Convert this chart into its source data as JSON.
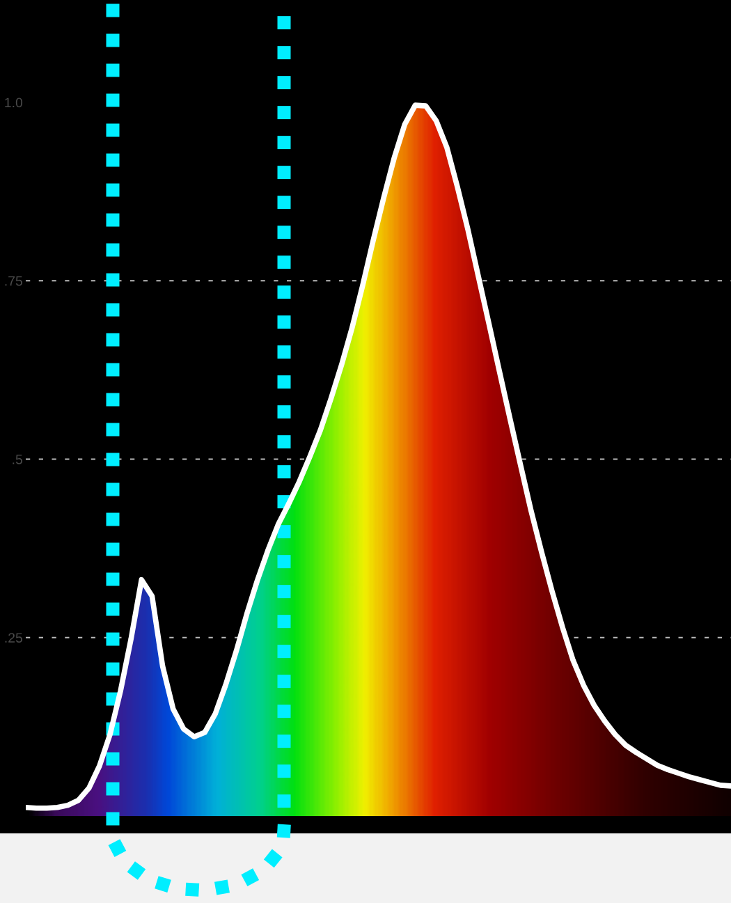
{
  "chart_data": {
    "type": "line",
    "ylim": [
      0,
      1
    ],
    "yticks": [
      {
        "value": 0.25,
        "label": ".25"
      },
      {
        "value": 0.5,
        "label": ".5"
      },
      {
        "value": 0.75,
        "label": ".75"
      },
      {
        "value": 1,
        "label": "1.0"
      }
    ],
    "grid": "y",
    "categories": [
      null,
      null,
      null,
      null,
      null,
      null,
      null,
      null,
      null,
      null,
      null,
      null,
      null,
      null,
      null,
      null,
      null,
      null,
      null,
      null,
      null,
      null,
      null,
      null,
      null,
      null,
      null,
      null,
      null,
      null,
      null,
      null,
      null,
      null,
      null,
      null,
      null,
      null,
      null,
      null,
      null,
      null,
      null,
      null,
      null,
      null,
      null,
      null,
      null,
      null,
      null,
      null,
      null,
      null,
      null,
      null,
      null,
      null,
      null,
      null,
      null,
      null,
      null,
      null,
      null,
      null,
      null,
      null
    ],
    "series": [
      {
        "color": "#ffffff",
        "values": [
          0.012,
          0.011,
          0.011,
          0.012,
          0.015,
          0.022,
          0.039,
          0.07,
          0.114,
          0.175,
          0.248,
          0.331,
          0.308,
          0.21,
          0.15,
          0.122,
          0.111,
          0.117,
          0.143,
          0.184,
          0.231,
          0.283,
          0.33,
          0.372,
          0.409,
          0.438,
          0.469,
          0.504,
          0.541,
          0.585,
          0.632,
          0.684,
          0.743,
          0.806,
          0.866,
          0.922,
          0.969,
          0.996,
          0.995,
          0.974,
          0.937,
          0.882,
          0.822,
          0.756,
          0.69,
          0.623,
          0.557,
          0.492,
          0.428,
          0.37,
          0.315,
          0.264,
          0.218,
          0.183,
          0.155,
          0.133,
          0.114,
          0.099,
          0.089,
          0.08,
          0.071,
          0.065,
          0.06,
          0.055,
          0.051,
          0.047,
          0.043,
          0.042
        ]
      }
    ]
  }
}
